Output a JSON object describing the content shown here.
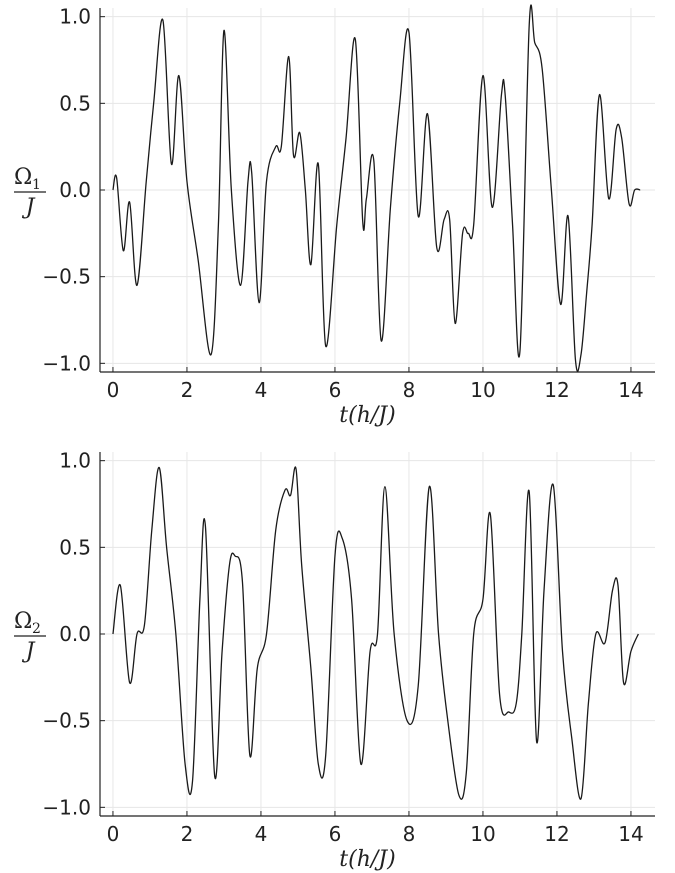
{
  "colors": {
    "line": "#1a1a1a",
    "axis": "#222222",
    "grid": "#e6e6e6"
  },
  "chart_data": [
    {
      "type": "line",
      "xlabel": "t(h/J)",
      "ylabel": {
        "main": "Ω",
        "sub": "1",
        "den": "J"
      },
      "xlim": [
        -0.35,
        14.65
      ],
      "ylim": [
        -1.05,
        1.05
      ],
      "xticks": [
        0,
        2,
        4,
        6,
        8,
        10,
        12,
        14
      ],
      "xtick_labels": [
        "0",
        "2",
        "4",
        "6",
        "8",
        "10",
        "12",
        "14"
      ],
      "yticks": [
        1.0,
        0.5,
        0.0,
        -0.5,
        -1.0
      ],
      "ytick_labels": [
        "1.0",
        "0.5",
        "0.0",
        "−0.5",
        "−1.0"
      ],
      "grid": true,
      "series": [
        {
          "x": [
            0,
            0.1,
            0.28,
            0.45,
            0.65,
            0.9,
            1.1,
            1.35,
            1.58,
            1.78,
            2.0,
            2.3,
            2.65,
            2.85,
            3.0,
            3.2,
            3.45,
            3.65,
            3.75,
            3.95,
            4.15,
            4.4,
            4.55,
            4.75,
            4.88,
            5.05,
            5.2,
            5.35,
            5.55,
            5.75,
            6.05,
            6.3,
            6.55,
            6.75,
            6.85,
            7.05,
            7.25,
            7.5,
            7.75,
            8.0,
            8.25,
            8.5,
            8.75,
            8.95,
            9.1,
            9.25,
            9.45,
            9.6,
            9.75,
            10.0,
            10.25,
            10.5,
            10.6,
            10.8,
            11.0,
            11.25,
            11.4,
            11.6,
            11.85,
            12.1,
            12.3,
            12.5,
            12.65,
            12.8,
            12.95,
            13.15,
            13.4,
            13.6,
            13.75,
            13.95,
            14.1,
            14.25
          ],
          "values": [
            0.0,
            0.07,
            -0.35,
            -0.07,
            -0.55,
            0.05,
            0.5,
            0.98,
            0.15,
            0.66,
            0.05,
            -0.4,
            -0.95,
            -0.2,
            0.92,
            0.0,
            -0.55,
            0.05,
            0.1,
            -0.65,
            0.05,
            0.25,
            0.25,
            0.77,
            0.2,
            0.33,
            0.0,
            -0.43,
            0.15,
            -0.9,
            -0.2,
            0.3,
            0.87,
            -0.18,
            -0.05,
            0.17,
            -0.87,
            -0.1,
            0.5,
            0.91,
            -0.15,
            0.44,
            -0.33,
            -0.17,
            -0.17,
            -0.77,
            -0.25,
            -0.25,
            -0.2,
            0.66,
            -0.1,
            0.55,
            0.55,
            -0.2,
            -0.93,
            0.95,
            0.85,
            0.7,
            0.0,
            -0.66,
            -0.15,
            -0.98,
            -0.95,
            -0.6,
            -0.2,
            0.55,
            -0.05,
            0.35,
            0.3,
            -0.08,
            0.0,
            0.0
          ]
        }
      ]
    },
    {
      "type": "line",
      "xlabel": "t(h/J)",
      "ylabel": {
        "main": "Ω",
        "sub": "2",
        "den": "J"
      },
      "xlim": [
        -0.35,
        14.65
      ],
      "ylim": [
        -1.05,
        1.05
      ],
      "xticks": [
        0,
        2,
        4,
        6,
        8,
        10,
        12,
        14
      ],
      "xtick_labels": [
        "0",
        "2",
        "4",
        "6",
        "8",
        "10",
        "12",
        "14"
      ],
      "yticks": [
        1.0,
        0.5,
        0.0,
        -0.5,
        -1.0
      ],
      "ytick_labels": [
        "1.0",
        "0.5",
        "0.0",
        "−0.5",
        "−1.0"
      ],
      "grid": true,
      "series": [
        {
          "x": [
            0,
            0.2,
            0.45,
            0.65,
            0.85,
            1.05,
            1.25,
            1.45,
            1.7,
            1.95,
            2.15,
            2.35,
            2.5,
            2.75,
            2.95,
            3.15,
            3.3,
            3.5,
            3.7,
            3.9,
            4.15,
            4.4,
            4.65,
            4.8,
            4.95,
            5.1,
            5.35,
            5.55,
            5.75,
            6.0,
            6.2,
            6.45,
            6.7,
            6.95,
            7.15,
            7.35,
            7.6,
            7.95,
            8.25,
            8.55,
            8.8,
            9.05,
            9.35,
            9.55,
            9.75,
            10.0,
            10.2,
            10.45,
            10.7,
            10.9,
            11.05,
            11.25,
            11.45,
            11.65,
            11.9,
            12.15,
            12.4,
            12.65,
            12.85,
            13.05,
            13.3,
            13.5,
            13.65,
            13.8,
            14.0,
            14.2
          ],
          "values": [
            0.0,
            0.28,
            -0.28,
            0.0,
            0.05,
            0.6,
            0.96,
            0.5,
            0.0,
            -0.75,
            -0.85,
            0.2,
            0.62,
            -0.82,
            -0.1,
            0.4,
            0.45,
            0.3,
            -0.7,
            -0.2,
            0.0,
            0.6,
            0.83,
            0.8,
            0.95,
            0.4,
            -0.2,
            -0.75,
            -0.7,
            0.45,
            0.55,
            0.2,
            -0.75,
            -0.1,
            0.0,
            0.85,
            0.0,
            -0.5,
            -0.3,
            0.85,
            0.0,
            -0.5,
            -0.93,
            -0.8,
            0.0,
            0.2,
            0.69,
            -0.35,
            -0.45,
            -0.4,
            0.0,
            0.82,
            -0.62,
            0.25,
            0.86,
            -0.1,
            -0.6,
            -0.95,
            -0.4,
            0.0,
            -0.05,
            0.25,
            0.28,
            -0.28,
            -0.1,
            0.0
          ]
        }
      ]
    }
  ]
}
